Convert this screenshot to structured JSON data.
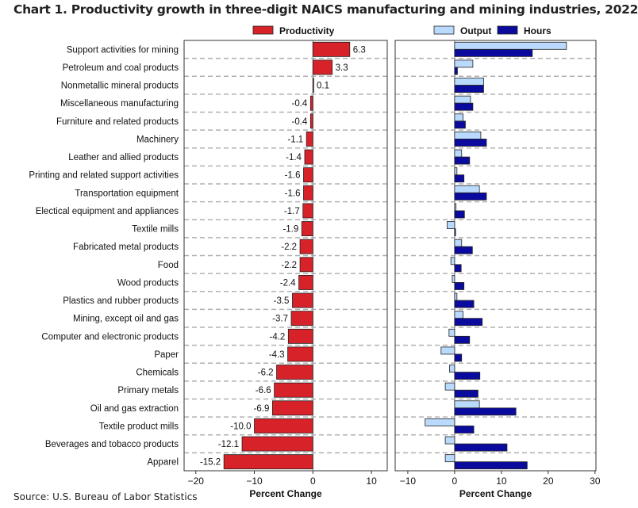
{
  "title": "Chart 1. Productivity growth in three-digit NAICS manufacturing and mining industries, 2022",
  "source": "Source: U.S. Bureau of Labor Statistics",
  "colors": {
    "productivity": "#d7222a",
    "output": "#b9dafc",
    "hours": "#0a0a9e",
    "gridline": "#b0b0b0"
  },
  "chart_data": [
    {
      "type": "bar",
      "orientation": "horizontal",
      "xlabel": "Percent Change",
      "xlim": [
        -22,
        12.7
      ],
      "xticks": [
        "−20",
        "−10",
        "0",
        "10"
      ],
      "xtick_values": [
        -20,
        -10,
        0,
        10
      ],
      "legend_placement": "top",
      "categories": [
        "Support activities for mining",
        "Petroleum and coal products",
        "Nonmetallic mineral products",
        "Miscellaneous manufacturing",
        "Furniture and related products",
        "Machinery",
        "Leather and allied products",
        "Printing and related support activities",
        "Transportation equipment",
        "Electical equipment and appliances",
        "Textile mills",
        "Fabricated metal products",
        "Food",
        "Wood products",
        "Plastics and rubber products",
        "Mining, except oil and gas",
        "Computer and electronic products",
        "Paper",
        "Chemicals",
        "Primary metals",
        "Oil and gas extraction",
        "Textile product mills",
        "Beverages and tobacco products",
        "Apparel"
      ],
      "series": [
        {
          "name": "Productivity",
          "values": [
            6.3,
            3.3,
            0.1,
            -0.4,
            -0.4,
            -1.1,
            -1.4,
            -1.6,
            -1.6,
            -1.7,
            -1.9,
            -2.2,
            -2.2,
            -2.4,
            -3.5,
            -3.7,
            -4.2,
            -4.3,
            -6.2,
            -6.6,
            -6.9,
            -10.0,
            -12.1,
            -15.2
          ],
          "labels": [
            "6.3",
            "3.3",
            "0.1",
            "-0.4",
            "-0.4",
            "-1.1",
            "-1.4",
            "-1.6",
            "-1.6",
            "-1.7",
            "-1.9",
            "-2.2",
            "-2.2",
            "-2.4",
            "-3.5",
            "-3.7",
            "-4.2",
            "-4.3",
            "-6.2",
            "-6.6",
            "-6.9",
            "-10.0",
            "-12.1",
            "-15.2"
          ]
        }
      ]
    },
    {
      "type": "bar",
      "orientation": "horizontal",
      "xlabel": "Percent Change",
      "xlim": [
        -12.7,
        30.2
      ],
      "xticks": [
        "−10",
        "0",
        "10",
        "20",
        "30"
      ],
      "xtick_values": [
        -10,
        0,
        10,
        20,
        30
      ],
      "legend_placement": "top",
      "series": [
        {
          "name": "Output",
          "values": [
            23.9,
            3.9,
            6.2,
            3.4,
            1.8,
            5.6,
            1.5,
            0.5,
            5.3,
            0.3,
            -1.6,
            1.5,
            -0.8,
            -0.5,
            0.5,
            1.8,
            -1.2,
            -2.9,
            -1.1,
            -2.0,
            5.3,
            -6.3,
            -2.0,
            -2.0
          ]
        },
        {
          "name": "Hours",
          "values": [
            16.6,
            0.6,
            6.2,
            3.9,
            2.3,
            6.8,
            3.2,
            2.0,
            6.8,
            2.1,
            0.2,
            3.8,
            1.4,
            2.0,
            4.1,
            5.9,
            3.2,
            1.5,
            5.4,
            5.0,
            13.1,
            4.1,
            11.2,
            15.5
          ]
        }
      ]
    }
  ]
}
